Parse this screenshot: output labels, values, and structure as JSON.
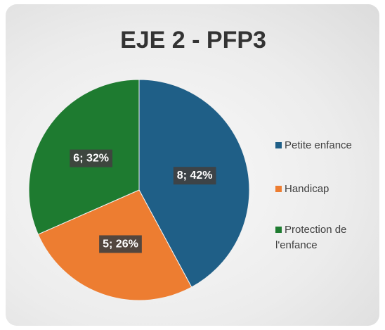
{
  "chart_data": {
    "type": "pie",
    "title": "EJE 2 - PFP3",
    "categories": [
      "Petite enfance",
      "Handicap",
      "Protection de l'enfance"
    ],
    "values": [
      8,
      5,
      6
    ],
    "value_labels": [
      "8; 42%",
      "5; 26%",
      "6; 32%"
    ],
    "colors": [
      "#1f5f87",
      "#ed7d31",
      "#1e7b30"
    ],
    "legend": "right"
  }
}
